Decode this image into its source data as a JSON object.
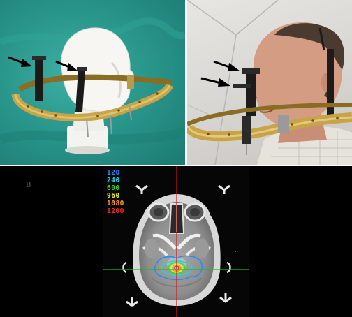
{
  "figure": {
    "panels": [
      {
        "id": "a",
        "subject": "stereotactic-frame-on-mannequin-head"
      },
      {
        "id": "b",
        "subject": "stereotactic-frame-on-patient"
      },
      {
        "id": "c",
        "subject": "axial-ct-with-isodose-lines"
      }
    ],
    "colors": {
      "background_a": "#2a978c",
      "frame_gold": "#c7a34a",
      "post_black": "#1a1a1a",
      "crosshair_vertical": "#d01818",
      "crosshair_horizontal": "#18c018"
    }
  },
  "ct_panel": {
    "label": "B",
    "dose_legend": [
      {
        "value": "120",
        "color": "#1e8bff"
      },
      {
        "value": "240",
        "color": "#18d8e8"
      },
      {
        "value": "600",
        "color": "#2fe02f"
      },
      {
        "value": "960",
        "color": "#f0f020"
      },
      {
        "value": "1080",
        "color": "#ff9a1a"
      },
      {
        "value": "1200",
        "color": "#ff2a1a"
      }
    ]
  }
}
